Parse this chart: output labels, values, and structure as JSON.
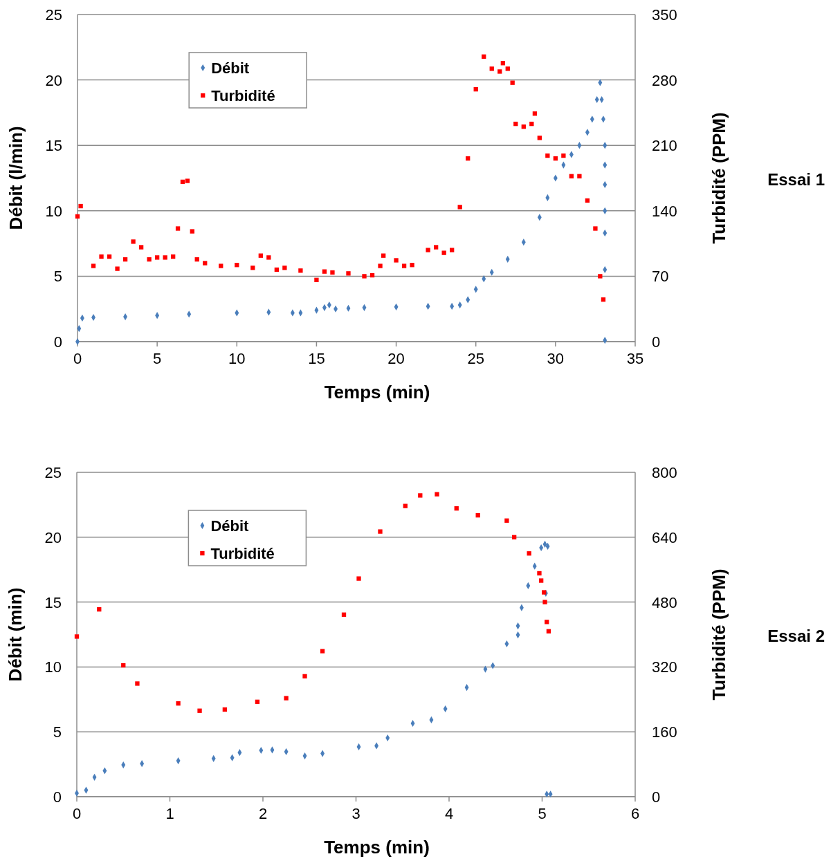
{
  "chart_data": [
    {
      "type": "scatter",
      "xlabel": "Temps (min)",
      "ylabel": "Débit (l/min)",
      "y2label": "Turbidité (PPM)",
      "annotations": [
        "Essai 1"
      ],
      "xlim": [
        0,
        35
      ],
      "xticks": [
        0,
        5,
        10,
        15,
        20,
        25,
        30,
        35
      ],
      "ylim": [
        0,
        25
      ],
      "yticks": [
        0,
        5,
        10,
        15,
        20,
        25
      ],
      "y2lim": [
        0,
        350
      ],
      "y2ticks": [
        0,
        70,
        140,
        210,
        280,
        350
      ],
      "grid": "y",
      "legend": "top left",
      "series": [
        {
          "name": "Débit",
          "color": "#4a7ebb",
          "marker": "diamond",
          "x": [
            0,
            0.1,
            0.3,
            1,
            3,
            5,
            7,
            10,
            12,
            13.5,
            14,
            15,
            15.5,
            15.8,
            16.2,
            17,
            18,
            20,
            22,
            23.5,
            24,
            24.5,
            25,
            25.5,
            26,
            27,
            28,
            29,
            29.5,
            30,
            30.5,
            31,
            31.5,
            32,
            32.3,
            32.6,
            32.8,
            32.9,
            33,
            33.1,
            33.1,
            33.1,
            33.1,
            33.1,
            33.1,
            33.1
          ],
          "values": [
            0,
            1,
            1.8,
            1.85,
            1.9,
            2.0,
            2.1,
            2.2,
            2.25,
            2.2,
            2.2,
            2.4,
            2.6,
            2.8,
            2.5,
            2.55,
            2.6,
            2.65,
            2.7,
            2.7,
            2.8,
            3.2,
            4.0,
            4.8,
            5.3,
            6.3,
            7.6,
            9.5,
            11,
            12.5,
            13.5,
            14.3,
            15.0,
            16.0,
            17.0,
            18.5,
            19.8,
            18.5,
            17.0,
            15.0,
            13.5,
            12.0,
            10.0,
            8.3,
            5.5,
            0.1
          ]
        },
        {
          "name": "Turbidité",
          "color": "#ff0000",
          "marker": "square",
          "axis": "y2",
          "x": [
            0,
            0.2,
            1.0,
            1.5,
            2,
            2.5,
            3,
            3.5,
            4,
            4.5,
            5,
            5.5,
            6,
            6.3,
            6.6,
            6.9,
            7.2,
            7.5,
            8,
            9,
            10,
            11,
            11.5,
            12,
            12.5,
            13,
            14,
            15,
            15.5,
            16,
            17,
            18,
            18.5,
            19,
            19.2,
            20,
            20.5,
            21,
            22,
            22.5,
            23,
            23.5,
            24,
            24.5,
            25,
            25.5,
            26,
            26.5,
            26.7,
            27,
            27.3,
            27.5,
            28,
            28.5,
            28.7,
            29,
            29.5,
            30,
            30.5,
            31,
            31.5,
            32,
            32.5,
            32.8,
            33
          ],
          "values": [
            134,
            145,
            81,
            91,
            91,
            78,
            88,
            107,
            101,
            88,
            90,
            90,
            91,
            121,
            171,
            172,
            118,
            88,
            84,
            81,
            82,
            79,
            92,
            90,
            77,
            79,
            76,
            66,
            75,
            74,
            73,
            70,
            71,
            81,
            92,
            87,
            81,
            82,
            98,
            101,
            95,
            98,
            144,
            196,
            270,
            305,
            292,
            289,
            298,
            292,
            277,
            233,
            230,
            233,
            244,
            218,
            199,
            196,
            199,
            177,
            177,
            151,
            121,
            70,
            45
          ]
        }
      ]
    },
    {
      "type": "scatter",
      "xlabel": "Temps (min)",
      "ylabel": "Débit (min)",
      "y2label": "Turbidité (PPM)",
      "annotations": [
        "Essai 2"
      ],
      "xlim": [
        0,
        6
      ],
      "xticks": [
        0,
        1,
        2,
        3,
        4,
        5,
        6
      ],
      "ylim": [
        0,
        25
      ],
      "yticks": [
        0,
        5,
        10,
        15,
        20,
        25
      ],
      "y2lim": [
        0,
        800
      ],
      "y2ticks": [
        0,
        160,
        320,
        480,
        640,
        800
      ],
      "grid": "y",
      "legend": "top left",
      "series": [
        {
          "name": "Débit",
          "color": "#4a7ebb",
          "marker": "diamond",
          "x": [
            0,
            0.1,
            0.19,
            0.3,
            0.5,
            0.7,
            1.09,
            1.47,
            1.67,
            1.75,
            1.98,
            2.1,
            2.25,
            2.45,
            2.64,
            3.03,
            3.22,
            3.34,
            3.61,
            3.81,
            3.96,
            4.19,
            4.39,
            4.47,
            4.62,
            4.74,
            4.74,
            4.78,
            4.85,
            4.92,
            4.99,
            5.03,
            5.06,
            5.04,
            5.05,
            5.09
          ],
          "values": [
            0.27,
            0.5,
            1.5,
            2.0,
            2.45,
            2.55,
            2.77,
            2.94,
            3.0,
            3.4,
            3.57,
            3.6,
            3.47,
            3.14,
            3.33,
            3.84,
            3.92,
            4.53,
            5.65,
            5.92,
            6.77,
            8.42,
            9.83,
            10.1,
            11.78,
            12.47,
            13.16,
            14.57,
            16.26,
            17.77,
            19.19,
            19.46,
            19.3,
            15.68,
            0.2,
            0.2
          ]
        },
        {
          "name": "Turbidité",
          "color": "#ff0000",
          "marker": "square",
          "axis": "y2",
          "x": [
            0,
            0.24,
            0.5,
            0.65,
            1.09,
            1.32,
            1.59,
            1.94,
            2.25,
            2.45,
            2.64,
            2.87,
            3.03,
            3.26,
            3.53,
            3.69,
            3.87,
            4.08,
            4.31,
            4.62,
            4.7,
            4.86,
            4.97,
            4.99,
            5.02,
            5.03,
            5.05,
            5.07
          ],
          "values": [
            395,
            462,
            324,
            279,
            230,
            212,
            215,
            234,
            243,
            297,
            359,
            449,
            538,
            654,
            717,
            743,
            746,
            711,
            694,
            681,
            640,
            600,
            551,
            533,
            504,
            480,
            431,
            408
          ]
        }
      ]
    }
  ]
}
